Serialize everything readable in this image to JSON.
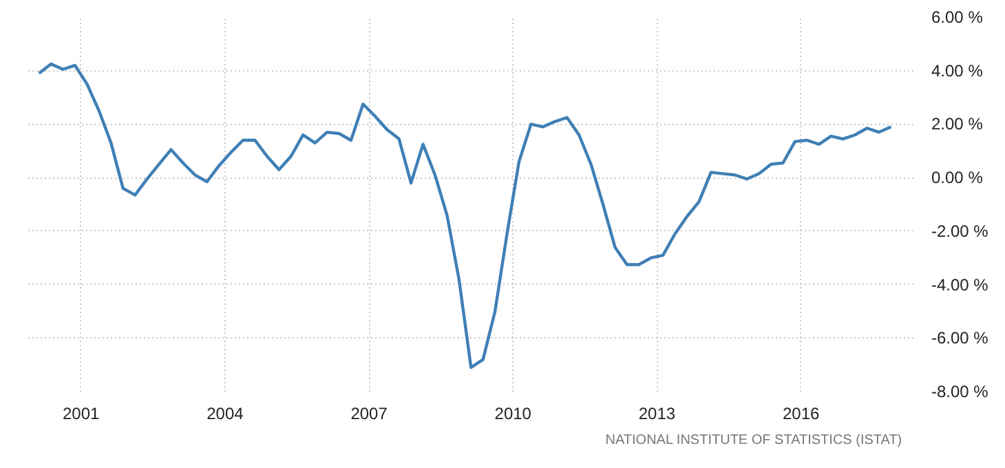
{
  "chart_data": {
    "type": "line",
    "x": [
      2000.125,
      2000.375,
      2000.625,
      2000.875,
      2001.125,
      2001.375,
      2001.625,
      2001.875,
      2002.125,
      2002.375,
      2002.625,
      2002.875,
      2003.125,
      2003.375,
      2003.625,
      2003.875,
      2004.125,
      2004.375,
      2004.625,
      2004.875,
      2005.125,
      2005.375,
      2005.625,
      2005.875,
      2006.125,
      2006.375,
      2006.625,
      2006.875,
      2007.125,
      2007.375,
      2007.625,
      2007.875,
      2008.125,
      2008.375,
      2008.625,
      2008.875,
      2009.125,
      2009.375,
      2009.625,
      2009.875,
      2010.125,
      2010.375,
      2010.625,
      2010.875,
      2011.125,
      2011.375,
      2011.625,
      2011.875,
      2012.125,
      2012.375,
      2012.625,
      2012.875,
      2013.125,
      2013.375,
      2013.625,
      2013.875,
      2014.125,
      2014.375,
      2014.625,
      2014.875,
      2015.125,
      2015.375,
      2015.625,
      2015.875,
      2016.125,
      2016.375,
      2016.625,
      2016.875,
      2017.125,
      2017.375,
      2017.625,
      2017.875
    ],
    "series": [
      {
        "color": "#3f7fb5",
        "values": [
          3.9,
          4.25,
          4.05,
          4.2,
          3.5,
          2.5,
          1.3,
          -0.4,
          -0.65,
          -0.05,
          0.5,
          1.05,
          0.55,
          0.1,
          -0.15,
          0.45,
          0.95,
          1.4,
          1.4,
          0.8,
          0.3,
          0.8,
          1.6,
          1.3,
          1.7,
          1.65,
          1.4,
          2.75,
          2.3,
          1.8,
          1.45,
          -0.2,
          1.25,
          0.1,
          -1.4,
          -3.8,
          -7.1,
          -6.8,
          -5.0,
          -2.1,
          0.6,
          2.0,
          1.9,
          2.1,
          2.25,
          1.6,
          0.5,
          -1.0,
          -2.6,
          -3.25,
          -3.25,
          -3.0,
          -2.9,
          -2.1,
          -1.45,
          -0.9,
          0.2,
          0.15,
          0.1,
          -0.05,
          0.15,
          0.5,
          0.55,
          1.35,
          1.4,
          1.25,
          1.55,
          1.45,
          1.6,
          1.85,
          1.7,
          1.9
        ]
      }
    ],
    "xlim": [
      1999.9,
      2018.4
    ],
    "ylim": [
      -8,
      6
    ],
    "xticks": [
      2001,
      2004,
      2007,
      2010,
      2013,
      2016
    ],
    "yticks": [
      {
        "value": 6,
        "label": "6.00 %"
      },
      {
        "value": 4,
        "label": "4.00 %"
      },
      {
        "value": 2,
        "label": "2.00 %"
      },
      {
        "value": 0,
        "label": "0.00 %"
      },
      {
        "value": -2,
        "label": "-2.00 %"
      },
      {
        "value": -4,
        "label": "-4.00 %"
      },
      {
        "value": -6,
        "label": "-6.00 %"
      },
      {
        "value": -8,
        "label": "-8.00 %"
      }
    ],
    "grid": true,
    "line_style": "solid",
    "annotations": [
      "NATIONAL INSTITUTE OF STATISTICS (ISTAT)"
    ]
  }
}
